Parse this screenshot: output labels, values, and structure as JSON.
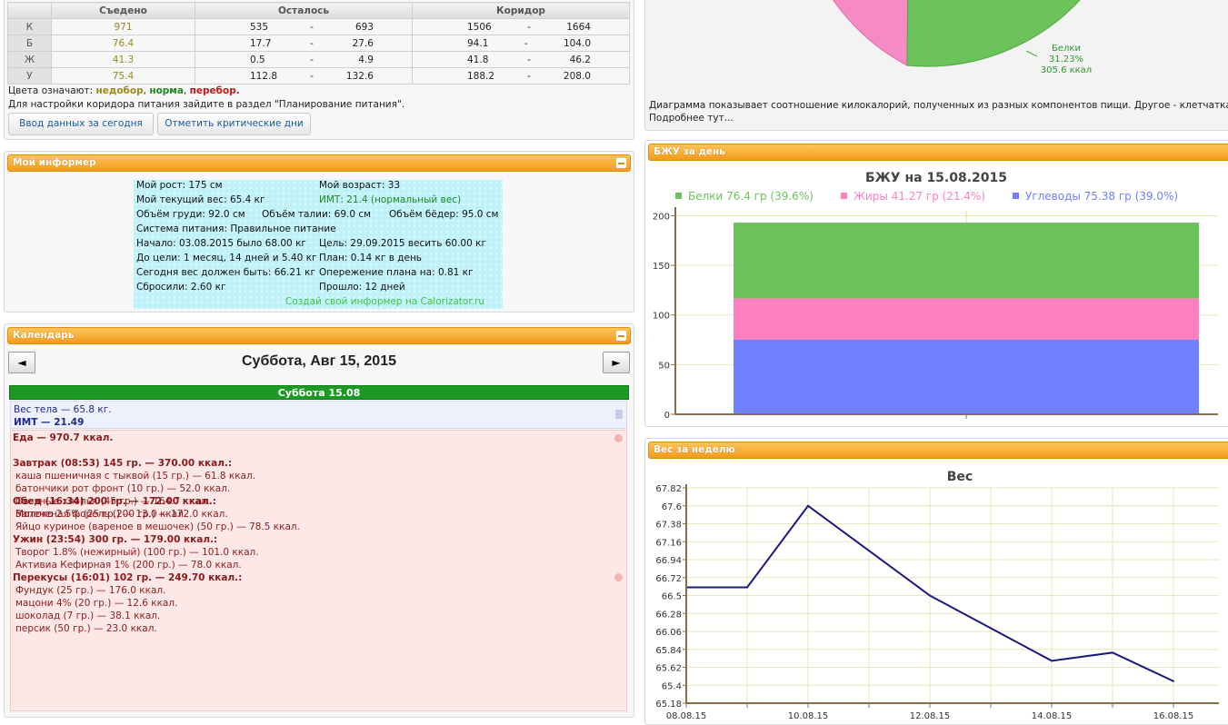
{
  "summary": {
    "headers": {
      "eaten": "Съедено",
      "left": "Осталось",
      "corridor": "Коридор"
    },
    "rows": [
      {
        "label": "К",
        "eaten": "971",
        "left_from": "535",
        "left_to": "693",
        "cor_from": "1506",
        "cor_to": "1664"
      },
      {
        "label": "Б",
        "eaten": "76.4",
        "left_from": "17.7",
        "left_to": "27.6",
        "cor_from": "94.1",
        "cor_to": "104.0"
      },
      {
        "label": "Ж",
        "eaten": "41.3",
        "left_from": "0.5",
        "left_to": "4.9",
        "cor_from": "41.8",
        "cor_to": "46.2"
      },
      {
        "label": "У",
        "eaten": "75.4",
        "left_from": "112.8",
        "left_to": "132.6",
        "cor_from": "188.2",
        "cor_to": "208.0"
      }
    ],
    "dash": "-",
    "legend_prefix": "Цвета означают:",
    "legend_under": "недобор",
    "legend_norm": "норма",
    "legend_over": "перебор.",
    "legend_comma": ",",
    "corridor_note": "Для настройки коридора питания зайдите в раздел \"Планирование питания\".",
    "btn_today": "Ввод данных за сегодня",
    "btn_critical": "Отметить критические дни",
    "colors": {
      "under": "#9a8a1b",
      "norm": "#1c8a1c",
      "over": "#c01818"
    }
  },
  "informer": {
    "title": "Мой информер",
    "height": "Мой рост: 175 см",
    "age": "Мой возраст: 33",
    "weight": "Мой текущий вес: 65.4 кг",
    "bmi": "ИМТ: 21.4 (нормальный вес)",
    "chest": "Объём груди: 92.0 см",
    "waist": "Объём талии: 69.0 см",
    "hips": "Объём бёдер: 95.0 см",
    "system": "Система питания: Правильное питание",
    "start": "Начало: 03.08.2015 было 68.00 кг",
    "goal": "Цель: 29.09.2015 весить 60.00 кг",
    "to_goal": "До цели: 1 месяц, 14 дней и 5.40 кг",
    "plan": "План: 0.14 кг в день",
    "today_should": "Сегодня вес должен быть: 66.21 кг",
    "ahead": "Опережение плана на: 0.81 кг",
    "lost": "Сбросили: 2.60 кг",
    "passed": "Прошло: 12 дней",
    "create": "Создай свой информер на Calorizator.ru"
  },
  "calendar": {
    "title": "Календарь",
    "date": "Суббота, Авг 15, 2015",
    "prev": "◄",
    "next": "►",
    "day_label": "Суббота 15.08",
    "weight": "Вес тела — 65.8 кг.",
    "bmi": "ИМТ — 21.49",
    "food": "Еда — 970.7 ккал.",
    "breakfast": "Завтрак (08:53) 145 гр. — 370.00 ккал.:",
    "breakfast_items": [
      "каша пшеничная с тыквой (15 гр.) — 61.8 ккал.",
      "батончики рот фронт (10 гр.) — 52.0 ккал.",
      "Овсяные хлопья (45 гр.) — 164.7 ккал.",
      "Молоко 2.5% (25 гр.) — 13.0 ккал.",
      "Яйцо куриное (вареное в мешочек) (50 гр.) — 78.5 ккал."
    ],
    "lunch": "Обед (16:34) 200 гр. — 172.00 ккал.:",
    "lunch_items": [
      "Запеченая форель (200 гр.) — 172.0 ккал."
    ],
    "dinner": "Ужин (23:54) 300 гр. — 179.00 ккал.:",
    "dinner_items": [
      "Творог 1.8% (нежирный) (100 гр.) — 101.0 ккал.",
      "Активиа Кефирная 1% (200 гр.) — 78.0 ккал."
    ],
    "snacks": "Перекусы (16:01) 102 гр. — 249.70 ккал.:",
    "snack_items": [
      "Фундук (25 гр.) — 176.0 ккал.",
      "мацони 4% (20 гр.) — 12.6 ккал.",
      "шоколад (7 гр.) — 38.1 ккал.",
      "персик (50 гр.) — 23.0 ккал."
    ]
  },
  "pie": {
    "label_name": "Белки",
    "label_pct": "31.23%",
    "label_kcal": "305.6 ккал",
    "note": "Диаграмма показывает соотношение килокалорий, полученных из разных компонентов пищи. Другое - клетчатка, спирты и",
    "more": "Подробнее тут..."
  },
  "bju_panel_title": "БЖУ за день",
  "weight_panel_title": "Вес за неделю",
  "chart_data": [
    {
      "type": "bar",
      "title": "БЖУ на 15.08.2015",
      "stacked": true,
      "series": [
        {
          "name": "Белки 76.4 гр (39.6%)",
          "value": 76.4,
          "color": "#6cc35c"
        },
        {
          "name": "Жиры 41.27 гр (21.4%)",
          "value": 41.27,
          "color": "#ff80c0"
        },
        {
          "name": "Углеводы 75.38 гр (39.0%)",
          "value": 75.38,
          "color": "#7080ff"
        }
      ],
      "yticks": [
        0,
        50,
        100,
        150,
        200
      ],
      "ylim": [
        0,
        205
      ],
      "legend": "top"
    },
    {
      "type": "line",
      "title": "Вес",
      "x": [
        "08.08.15",
        "09.08.15",
        "10.08.15",
        "11.08.15",
        "12.08.15",
        "13.08.15",
        "14.08.15",
        "15.08.15",
        "16.08.15"
      ],
      "xticks": [
        "08.08.15",
        "10.08.15",
        "12.08.15",
        "14.08.15",
        "16.08.15"
      ],
      "series": [
        {
          "values": [
            66.6,
            66.6,
            67.6,
            null,
            66.5,
            null,
            65.7,
            65.8,
            65.45
          ],
          "color": "#1a1a80"
        }
      ],
      "yticks": [
        "67.82",
        "67.6",
        "67.38",
        "67.16",
        "66.94",
        "66.72",
        "66.5",
        "66.28",
        "66.06",
        "65.84",
        "65.62",
        "65.4",
        "65.18"
      ],
      "ylim": [
        65.18,
        67.82
      ]
    }
  ]
}
